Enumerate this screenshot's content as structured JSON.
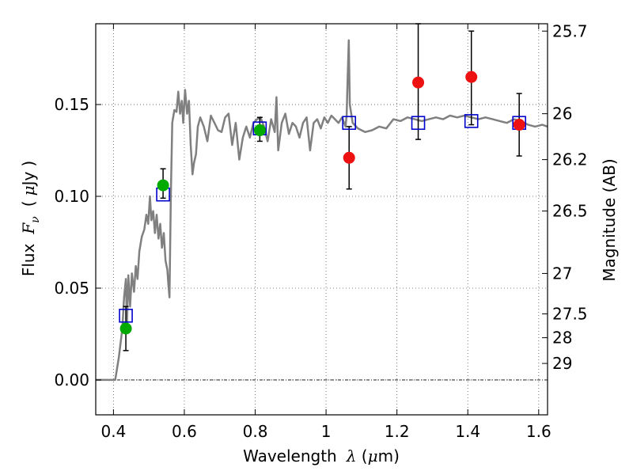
{
  "chart_data": {
    "type": "scatter",
    "xlabel": {
      "text": "Wavelength",
      "var": "λ",
      "unit_open": " (",
      "unit_mu": "μ",
      "unit_rest": "m)"
    },
    "ylabel": {
      "text": "Flux",
      "var": "F",
      "sub": "ν",
      "unit_open": "(",
      "unit_mu": "μ",
      "unit_rest": "Jy",
      "unit_close": ")"
    },
    "y2label": "Magnitude (AB)",
    "xlim": [
      0.35,
      1.625
    ],
    "ylim": [
      -0.019,
      0.194
    ],
    "x_ticks": [
      0.4,
      0.6,
      0.8,
      1.0,
      1.2,
      1.4,
      1.6
    ],
    "x_tick_labels": [
      "0.4",
      "0.6",
      "0.8",
      "1",
      "1.2",
      "1.4",
      "1.6"
    ],
    "y_ticks": [
      0.0,
      0.05,
      0.1,
      0.15
    ],
    "y_tick_labels": [
      "0.00",
      "0.05",
      "0.10",
      "0.15"
    ],
    "y2_ticks": [
      {
        "flux": 0.19,
        "label": "25.7"
      },
      {
        "flux": 0.145,
        "label": "26"
      },
      {
        "flux": 0.12,
        "label": "26.2"
      },
      {
        "flux": 0.092,
        "label": "26.5"
      },
      {
        "flux": 0.058,
        "label": "27"
      },
      {
        "flux": 0.036,
        "label": "27.5"
      },
      {
        "flux": 0.023,
        "label": "28"
      },
      {
        "flux": 0.009,
        "label": "29"
      }
    ],
    "grid": true,
    "zero_line": true,
    "colors": {
      "model": "#808080",
      "model_photometry": "#0000cc",
      "detection": "#00aa00",
      "nondetection": "#ee1111",
      "errorbar": "#000000",
      "grid": "#555555"
    },
    "series": [
      {
        "style": "line",
        "points": [
          [
            0.35,
            0.0
          ],
          [
            0.375,
            0.0
          ],
          [
            0.405,
            0.0
          ],
          [
            0.415,
            0.012
          ],
          [
            0.425,
            0.028
          ],
          [
            0.43,
            0.045
          ],
          [
            0.435,
            0.055
          ],
          [
            0.438,
            0.03
          ],
          [
            0.442,
            0.057
          ],
          [
            0.447,
            0.04
          ],
          [
            0.452,
            0.058
          ],
          [
            0.458,
            0.048
          ],
          [
            0.463,
            0.062
          ],
          [
            0.468,
            0.055
          ],
          [
            0.473,
            0.07
          ],
          [
            0.48,
            0.078
          ],
          [
            0.487,
            0.082
          ],
          [
            0.493,
            0.09
          ],
          [
            0.498,
            0.085
          ],
          [
            0.503,
            0.1
          ],
          [
            0.507,
            0.087
          ],
          [
            0.512,
            0.092
          ],
          [
            0.517,
            0.08
          ],
          [
            0.522,
            0.09
          ],
          [
            0.527,
            0.077
          ],
          [
            0.532,
            0.085
          ],
          [
            0.537,
            0.072
          ],
          [
            0.542,
            0.08
          ],
          [
            0.547,
            0.065
          ],
          [
            0.552,
            0.06
          ],
          [
            0.555,
            0.052
          ],
          [
            0.558,
            0.045
          ],
          [
            0.562,
            0.1
          ],
          [
            0.566,
            0.14
          ],
          [
            0.572,
            0.147
          ],
          [
            0.578,
            0.146
          ],
          [
            0.583,
            0.157
          ],
          [
            0.588,
            0.145
          ],
          [
            0.593,
            0.152
          ],
          [
            0.597,
            0.14
          ],
          [
            0.602,
            0.158
          ],
          [
            0.608,
            0.145
          ],
          [
            0.613,
            0.152
          ],
          [
            0.618,
            0.128
          ],
          [
            0.623,
            0.112
          ],
          [
            0.627,
            0.118
          ],
          [
            0.633,
            0.123
          ],
          [
            0.638,
            0.138
          ],
          [
            0.645,
            0.143
          ],
          [
            0.655,
            0.138
          ],
          [
            0.665,
            0.13
          ],
          [
            0.675,
            0.144
          ],
          [
            0.685,
            0.14
          ],
          [
            0.695,
            0.136
          ],
          [
            0.705,
            0.135
          ],
          [
            0.715,
            0.143
          ],
          [
            0.725,
            0.145
          ],
          [
            0.735,
            0.128
          ],
          [
            0.745,
            0.14
          ],
          [
            0.755,
            0.12
          ],
          [
            0.765,
            0.132
          ],
          [
            0.775,
            0.138
          ],
          [
            0.785,
            0.132
          ],
          [
            0.795,
            0.14
          ],
          [
            0.805,
            0.142
          ],
          [
            0.815,
            0.143
          ],
          [
            0.825,
            0.138
          ],
          [
            0.835,
            0.13
          ],
          [
            0.845,
            0.142
          ],
          [
            0.855,
            0.135
          ],
          [
            0.86,
            0.154
          ],
          [
            0.865,
            0.125
          ],
          [
            0.875,
            0.14
          ],
          [
            0.885,
            0.145
          ],
          [
            0.895,
            0.134
          ],
          [
            0.905,
            0.14
          ],
          [
            0.915,
            0.138
          ],
          [
            0.925,
            0.132
          ],
          [
            0.935,
            0.14
          ],
          [
            0.945,
            0.143
          ],
          [
            0.955,
            0.125
          ],
          [
            0.965,
            0.14
          ],
          [
            0.975,
            0.142
          ],
          [
            0.985,
            0.137
          ],
          [
            0.995,
            0.143
          ],
          [
            1.005,
            0.14
          ],
          [
            1.015,
            0.144
          ],
          [
            1.025,
            0.142
          ],
          [
            1.035,
            0.14
          ],
          [
            1.045,
            0.143
          ],
          [
            1.055,
            0.138
          ],
          [
            1.058,
            0.144
          ],
          [
            1.061,
            0.165
          ],
          [
            1.064,
            0.185
          ],
          [
            1.067,
            0.15
          ],
          [
            1.075,
            0.14
          ],
          [
            1.09,
            0.137
          ],
          [
            1.11,
            0.135
          ],
          [
            1.13,
            0.136
          ],
          [
            1.15,
            0.138
          ],
          [
            1.17,
            0.137
          ],
          [
            1.19,
            0.142
          ],
          [
            1.21,
            0.141
          ],
          [
            1.23,
            0.143
          ],
          [
            1.25,
            0.142
          ],
          [
            1.27,
            0.141
          ],
          [
            1.29,
            0.142
          ],
          [
            1.31,
            0.143
          ],
          [
            1.33,
            0.142
          ],
          [
            1.35,
            0.144
          ],
          [
            1.37,
            0.143
          ],
          [
            1.39,
            0.144
          ],
          [
            1.41,
            0.143
          ],
          [
            1.43,
            0.142
          ],
          [
            1.45,
            0.143
          ],
          [
            1.47,
            0.142
          ],
          [
            1.49,
            0.141
          ],
          [
            1.51,
            0.14
          ],
          [
            1.53,
            0.142
          ],
          [
            1.55,
            0.141
          ],
          [
            1.57,
            0.139
          ],
          [
            1.59,
            0.138
          ],
          [
            1.61,
            0.139
          ],
          [
            1.625,
            0.138
          ]
        ]
      },
      {
        "style": "square",
        "points": [
          [
            0.435,
            0.035
          ],
          [
            0.54,
            0.101
          ],
          [
            0.813,
            0.137
          ],
          [
            1.065,
            0.14
          ],
          [
            1.26,
            0.14
          ],
          [
            1.41,
            0.141
          ],
          [
            1.545,
            0.14
          ]
        ]
      },
      {
        "style": "circle",
        "points": [
          {
            "x": 0.435,
            "y": 0.028,
            "yerr_low": 0.016,
            "yerr_high": 0.04
          },
          {
            "x": 0.54,
            "y": 0.106,
            "yerr_low": 0.099,
            "yerr_high": 0.115
          },
          {
            "x": 0.813,
            "y": 0.136,
            "yerr_low": 0.13,
            "yerr_high": 0.143
          }
        ]
      },
      {
        "style": "circle",
        "points": [
          {
            "x": 1.065,
            "y": 0.121,
            "yerr_low": 0.104,
            "yerr_high": 0.138
          },
          {
            "x": 1.26,
            "y": 0.162,
            "yerr_low": 0.131,
            "yerr_high": 0.194
          },
          {
            "x": 1.41,
            "y": 0.165,
            "yerr_low": 0.139,
            "yerr_high": 0.19
          },
          {
            "x": 1.545,
            "y": 0.139,
            "yerr_low": 0.122,
            "yerr_high": 0.156
          }
        ]
      }
    ]
  }
}
